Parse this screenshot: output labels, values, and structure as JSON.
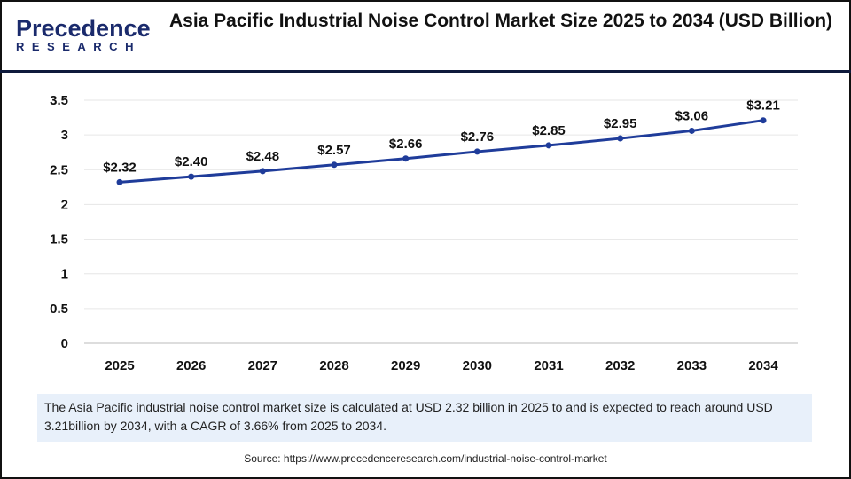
{
  "logo": {
    "line1": "Precedence",
    "line2": "RESEARCH"
  },
  "title": "Asia Pacific Industrial Noise Control Market Size 2025 to 2034 (USD Billion)",
  "chart_data": {
    "type": "line",
    "title": "Asia Pacific Industrial Noise Control Market Size 2025 to 2034 (USD Billion)",
    "categories": [
      "2025",
      "2026",
      "2027",
      "2028",
      "2029",
      "2030",
      "2031",
      "2032",
      "2033",
      "2034"
    ],
    "series": [
      {
        "values": [
          2.32,
          2.4,
          2.48,
          2.57,
          2.66,
          2.76,
          2.85,
          2.95,
          3.06,
          3.21
        ],
        "color": "#1f3c9a"
      }
    ],
    "data_labels": [
      "$2.32",
      "$2.40",
      "$2.48",
      "$2.57",
      "$2.66",
      "$2.76",
      "$2.85",
      "$2.95",
      "$3.06",
      "$3.21"
    ],
    "yticks": [
      "0",
      "0.5",
      "1",
      "1.5",
      "2",
      "2.5",
      "3",
      "3.5"
    ],
    "ylim": [
      0,
      3.5
    ],
    "grid": true,
    "xlabel": "",
    "ylabel": ""
  },
  "note": "The Asia Pacific industrial noise control market size is calculated at USD 2.32 billion in 2025 to and is expected to reach around USD 3.21billion by 2034, with a CAGR of 3.66% from 2025 to 2034.",
  "source": "Source: https://www.precedenceresearch.com/industrial-noise-control-market"
}
